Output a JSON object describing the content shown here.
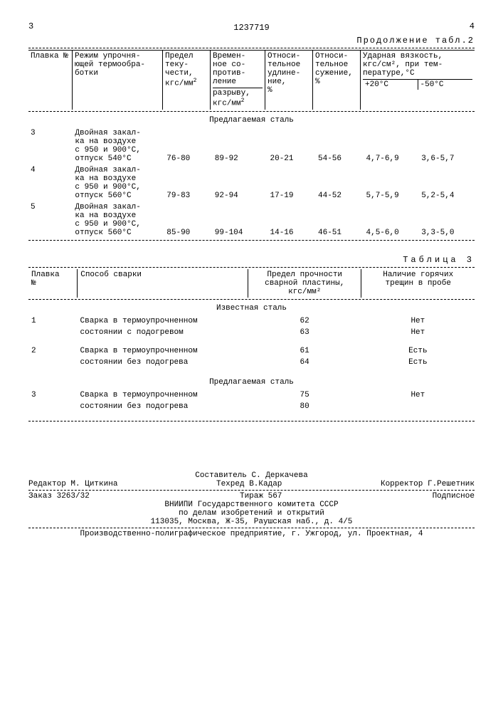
{
  "header": {
    "page_left": "3",
    "doc_number": "1237719",
    "page_right": "4",
    "continuation": "Продолжение табл.2"
  },
  "table2": {
    "headers": {
      "plavka": "Плавка №",
      "regime": "Режим упрочня-\nющей термообра-\nботки",
      "yield": "Предел\nтеку-\nчести,\nкгс/мм",
      "tensile": "Времен-\nное со-\nпротив-\nление",
      "tensile_sub": "разрыву,\nкгс/мм",
      "elong": "Относи-\nтельное\nудлине-\nние,\n%",
      "narrow": "Относи-\nтельное\nсужение,\n%",
      "impact": "Ударная вязкость,\nкгс/см², при тем-\nпературе,°С",
      "t_plus20": "+20°С",
      "t_minus50": "-50°С"
    },
    "section": "Предлагаемая сталь",
    "rows": [
      {
        "n": "3",
        "regime": "Двойная закал-\nка на воздухе\nс 950 и 900°С,\nотпуск 540°С",
        "yield": "76-80",
        "tensile": "89-92",
        "elong": "20-21",
        "narrow": "54-56",
        "t20": "4,7-6,9",
        "t50": "3,6-5,7"
      },
      {
        "n": "4",
        "regime": "Двойная закал-\nка на воздухе\nс 950 и 900°С,\nотпуск 560°С",
        "yield": "79-83",
        "tensile": "92-94",
        "elong": "17-19",
        "narrow": "44-52",
        "t20": "5,7-5,9",
        "t50": "5,2-5,4"
      },
      {
        "n": "5",
        "regime": "Двойная закал-\nка на воздухе\nс 950 и 900°С,\nотпуск 560°С",
        "yield": "85-90",
        "tensile": "99-104",
        "elong": "14-16",
        "narrow": "46-51",
        "t20": "4,5-6,0",
        "t50": "3,3-5,0"
      }
    ]
  },
  "table3": {
    "title": "Таблица 3",
    "headers": {
      "plavka": "Плавка\n№",
      "method": "Способ сварки",
      "strength": "Предел прочности\nсварной пластины,\nкгс/мм²",
      "cracks": "Наличие горячих\nтрещин в пробе"
    },
    "section_known": "Известная сталь",
    "section_proposed": "Предлагаемая сталь",
    "rows_known": [
      {
        "n": "1",
        "method": "Сварка в термоупрочненном\nсостоянии с подогревом",
        "strength": [
          "62",
          "63"
        ],
        "cracks": [
          "Нет",
          "Нет"
        ]
      },
      {
        "n": "2",
        "method": "Сварка в термоупрочненном\nсостоянии без подогрева",
        "strength": [
          "61",
          "64"
        ],
        "cracks": [
          "Есть",
          "Есть"
        ]
      }
    ],
    "rows_proposed": [
      {
        "n": "3",
        "method": "Сварка в термоупрочненном\nсостоянии без подогрева",
        "strength": [
          "75",
          "80"
        ],
        "cracks": [
          "Нет",
          ""
        ]
      }
    ]
  },
  "footer": {
    "compiler": "Составитель С. Деркачева",
    "editor": "Редактор М. Циткина",
    "techred": "Техред В.Кадар",
    "corrector": "Корректор Г.Решетник",
    "order": "Заказ 3263/32",
    "tirazh": "Тираж 567",
    "subscription": "Подписное",
    "org1": "ВНИИПИ Государственного комитета СССР",
    "org2": "по делам изобретений и открытий",
    "address": "113035, Москва, Ж-35, Раушская наб., д. 4/5",
    "printer": "Производственно-полиграфическое предприятие, г. Ужгород, ул. Проектная, 4"
  },
  "style": {
    "font_family": "Courier New",
    "font_size_body": 11,
    "font_size_small": 10,
    "color_text": "#000000",
    "color_bg": "#ffffff",
    "border_color": "#000000"
  }
}
